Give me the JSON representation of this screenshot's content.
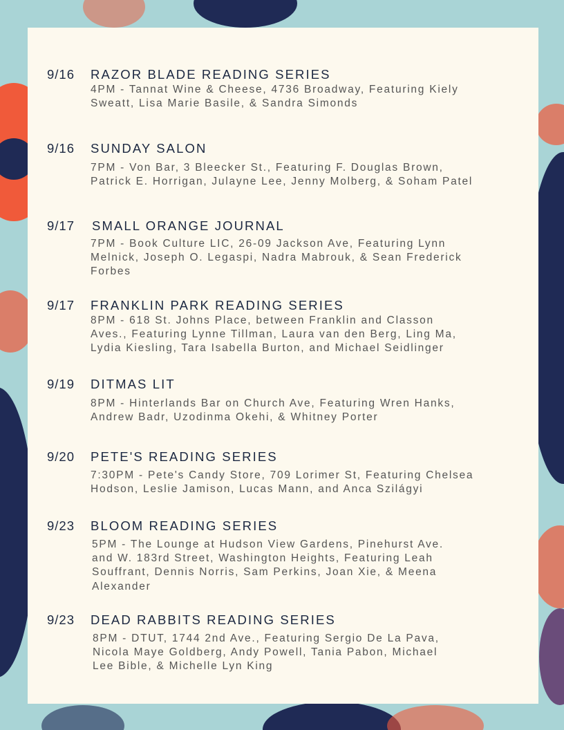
{
  "colors": {
    "background": "#a9d4d6",
    "panel": "#fdf9ee",
    "title": "#1c2841",
    "text": "#555555",
    "accent_navy": "#1f2a55",
    "accent_orange": "#f05a3a",
    "accent_purple": "#6a4c7a"
  },
  "events": [
    {
      "date": "9/16",
      "title": "RAZOR BLADE READING SERIES",
      "lines": [
        "4PM - Tannat Wine & Cheese, 4736 Broadway, Featuring Kiely",
        "Sweatt, Lisa Marie Basile, & Sandra Simonds"
      ]
    },
    {
      "date": "9/16",
      "title": "SUNDAY SALON",
      "lines": [
        "7PM - Von Bar, 3 Bleecker St., Featuring F. Douglas Brown,",
        "Patrick E. Horrigan, Julayne Lee, Jenny Molberg, & Soham Patel"
      ]
    },
    {
      "date": "9/17",
      "title": "SMALL ORANGE JOURNAL",
      "lines": [
        "7PM - Book Culture LIC, 26-09 Jackson Ave, Featuring Lynn",
        "Melnick, Joseph O. Legaspi, Nadra Mabrouk, & Sean Frederick",
        "Forbes"
      ]
    },
    {
      "date": "9/17",
      "title": "FRANKLIN PARK READING SERIES",
      "lines": [
        "8PM - 618 St. Johns Place, between Franklin and Classon",
        "Aves., Featuring Lynne Tillman, Laura van den Berg, Ling Ma,",
        "Lydia Kiesling, Tara Isabella Burton, and Michael Seidlinger"
      ]
    },
    {
      "date": "9/19",
      "title": "DITMAS LIT",
      "lines": [
        "8PM - Hinterlands Bar on Church Ave, Featuring Wren Hanks,",
        "Andrew Badr, Uzodinma Okehi, & Whitney Porter"
      ]
    },
    {
      "date": "9/20",
      "title": "PETE'S READING SERIES",
      "lines": [
        "7:30PM - Pete's Candy Store, 709 Lorimer St, Featuring Chelsea",
        "Hodson, Leslie Jamison, Lucas Mann, and Anca Szilágyi"
      ]
    },
    {
      "date": "9/23",
      "title": "BLOOM READING SERIES",
      "lines": [
        "5PM - The Lounge at Hudson View Gardens, Pinehurst Ave.",
        "and W. 183rd Street, Washington Heights, Featuring Leah",
        "Souffrant, Dennis Norris, Sam Perkins, Joan Xie, & Meena",
        "Alexander"
      ]
    },
    {
      "date": "9/23",
      "title": "DEAD RABBITS READING SERIES",
      "lines": [
        "8PM - DTUT, 1744 2nd Ave., Featuring Sergio De La Pava,",
        "Nicola Maye Goldberg, Andy Powell, Tania Pabon, Michael",
        "Lee Bible, & Michelle Lyn King"
      ]
    }
  ]
}
